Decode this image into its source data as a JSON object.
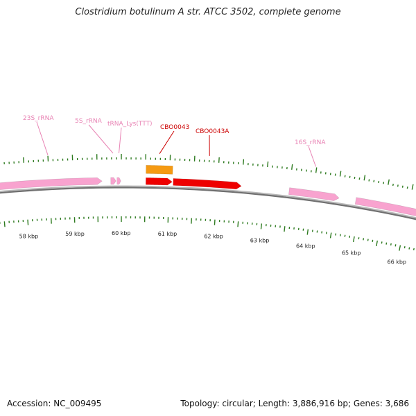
{
  "title": "Clostridium botulinum A str. ATCC 3502, complete genome",
  "footer": {
    "accession": "Accession: NC_009495",
    "topology": "Topology: circular; Length: 3,886,916 bp; Genes: 3,686"
  },
  "colors": {
    "rna": "#f8a3cf",
    "rna_label": "#e883b4",
    "cds": "#ee0000",
    "cds_label": "#cc0000",
    "cds_reverse": "#f59a13",
    "tick": "#2d7a1f",
    "backbone": "#808080"
  },
  "scale": {
    "start_kbp": 57.4,
    "end_kbp": 66.7,
    "labels": [
      {
        "kbp": 58,
        "text": "58 kbp"
      },
      {
        "kbp": 59,
        "text": "59 kbp"
      },
      {
        "kbp": 60,
        "text": "60 kbp"
      },
      {
        "kbp": 61,
        "text": "61 kbp"
      },
      {
        "kbp": 62,
        "text": "62 kbp"
      },
      {
        "kbp": 63,
        "text": "63 kbp"
      },
      {
        "kbp": 64,
        "text": "64 kbp"
      },
      {
        "kbp": 65,
        "text": "65 kbp"
      },
      {
        "kbp": 66,
        "text": "66 kbp"
      }
    ]
  },
  "features": [
    {
      "name": "23S_rRNA",
      "type": "rRNA",
      "start_kbp": 57.4,
      "end_kbp": 59.6,
      "strand": 1,
      "label": "23S_rRNA"
    },
    {
      "name": "5S_rRNA",
      "type": "rRNA",
      "start_kbp": 59.78,
      "end_kbp": 59.89,
      "strand": 1,
      "label": "5S_rRNA"
    },
    {
      "name": "tRNA_Lys(TTT)",
      "type": "tRNA",
      "start_kbp": 59.91,
      "end_kbp": 59.99,
      "strand": 1,
      "label": "tRNA_Lys(TTT)"
    },
    {
      "name": "CBO0043",
      "type": "CDS",
      "start_kbp": 60.51,
      "end_kbp": 61.06,
      "strand": -1,
      "label": "CBO0043"
    },
    {
      "name": "CBO0043",
      "type": "CDS",
      "start_kbp": 60.51,
      "end_kbp": 61.06,
      "strand": 1,
      "label": ""
    },
    {
      "name": "CBO0043A",
      "type": "CDS",
      "start_kbp": 61.08,
      "end_kbp": 62.5,
      "strand": 1,
      "label": "CBO0043A"
    },
    {
      "name": "16S_rRNA",
      "type": "rRNA",
      "start_kbp": 63.5,
      "end_kbp": 64.55,
      "strand": 1,
      "label": "16S_rRNA"
    },
    {
      "name": "rRNA",
      "type": "rRNA",
      "start_kbp": 64.9,
      "end_kbp": 66.7,
      "strand": 1,
      "label": ""
    }
  ]
}
